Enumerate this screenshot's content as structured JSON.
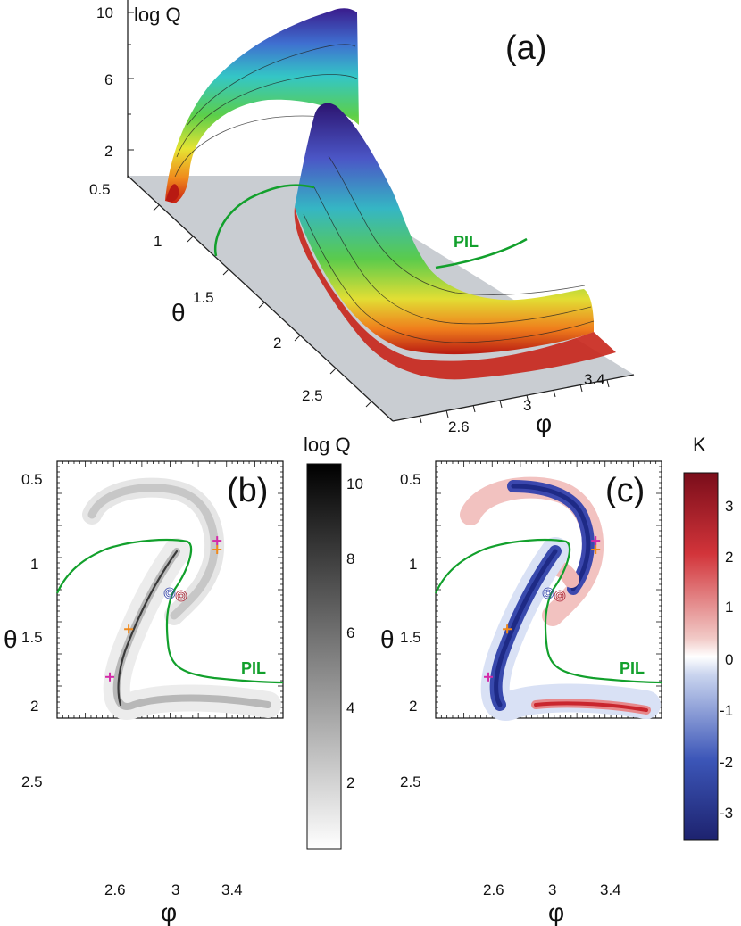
{
  "figure": {
    "panel_a": {
      "label": "(a)",
      "z_axis_title": "log Q",
      "z_ticks": [
        "10",
        "6",
        "2"
      ],
      "theta_axis_title": "θ",
      "theta_ticks": [
        "0.5",
        "1",
        "1.5",
        "2",
        "2.5"
      ],
      "phi_axis_title": "φ",
      "phi_ticks": [
        "2.6",
        "3",
        "3.4"
      ],
      "pil_label": "PIL"
    },
    "panel_b": {
      "label": "(b)",
      "colorbar_title": "log Q",
      "colorbar_ticks": [
        "10",
        "8",
        "6",
        "4",
        "2"
      ],
      "pil_label": "PIL"
    },
    "panel_c": {
      "label": "(c)",
      "colorbar_title": "K",
      "colorbar_ticks": [
        "3",
        "2",
        "1",
        "0",
        "-1",
        "-2",
        "-3"
      ],
      "pil_label": "PIL"
    },
    "shared_axes": {
      "y_title": "θ",
      "y_ticks": [
        "0.5",
        "1",
        "1.5",
        "2",
        "2.5"
      ],
      "x_title": "φ",
      "x_ticks": [
        "2.6",
        "3",
        "3.4"
      ]
    },
    "colors": {
      "pil": "#12a02c",
      "plane": "#c9cdd2",
      "marker_magenta": "#d42aa8",
      "marker_orange": "#f08a1c"
    }
  },
  "chart_data": [
    {
      "type": "surface3d",
      "x_axis": "phi",
      "x_range": [
        2.4,
        3.6
      ],
      "y_axis": "theta",
      "y_range": [
        0.5,
        2.8
      ],
      "z_axis": "log Q",
      "z_range": [
        0.5,
        10.5
      ]
    },
    {
      "type": "heatmap",
      "x_range": [
        2.4,
        3.6
      ],
      "y_range": [
        0.4,
        2.8
      ],
      "colorbar": {
        "range": [
          0,
          10.5
        ]
      },
      "markers": [
        {
          "phi": 3.25,
          "theta": 0.95,
          "color": "magenta"
        },
        {
          "phi": 3.25,
          "theta": 1.0,
          "color": "orange"
        },
        {
          "phi": 2.78,
          "theta": 1.45,
          "color": "orange"
        },
        {
          "phi": 2.68,
          "theta": 1.72,
          "color": "magenta"
        }
      ]
    },
    {
      "type": "heatmap",
      "x_range": [
        2.4,
        3.6
      ],
      "y_range": [
        0.4,
        2.8
      ],
      "colorbar": {
        "range": [
          -3.7,
          3.7
        ]
      },
      "markers": [
        {
          "phi": 3.25,
          "theta": 0.95,
          "color": "magenta"
        },
        {
          "phi": 3.25,
          "theta": 1.0,
          "color": "orange"
        },
        {
          "phi": 2.78,
          "theta": 1.45,
          "color": "orange"
        },
        {
          "phi": 2.68,
          "theta": 1.72,
          "color": "magenta"
        }
      ]
    }
  ]
}
